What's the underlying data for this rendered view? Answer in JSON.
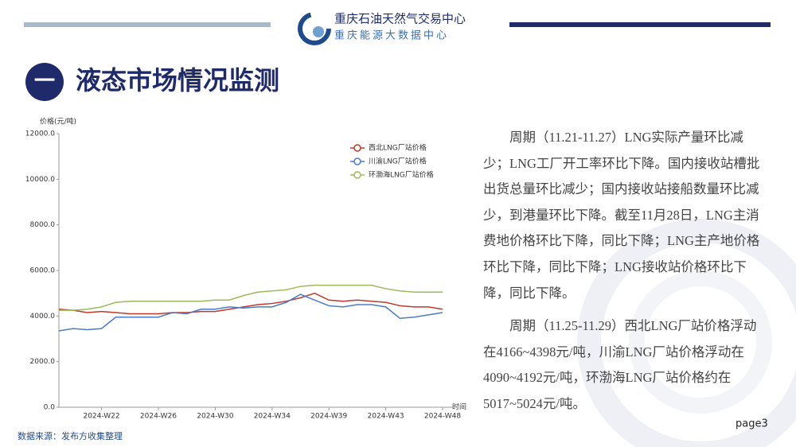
{
  "header": {
    "org": "重庆石油天然气交易中心",
    "org_sub": "重庆能源大数据中心"
  },
  "section": {
    "number": "一",
    "title": "液态市场情况监测"
  },
  "chart_data": {
    "type": "line",
    "y_label": "价格(元/吨)",
    "x_label": "时间",
    "categories": [
      null,
      null,
      null,
      "2024-W22",
      null,
      null,
      null,
      "2024-W26",
      null,
      null,
      null,
      "2024-W30",
      null,
      null,
      null,
      "2024-W34",
      null,
      null,
      null,
      "2024-W39",
      null,
      null,
      null,
      "2024-W43",
      null,
      null,
      null,
      "2024-W48"
    ],
    "series": [
      {
        "name": "西北LNG厂站价格",
        "color": "#c0392b",
        "values": [
          4300,
          4250,
          4150,
          4200,
          4150,
          4100,
          4100,
          4100,
          4150,
          4150,
          4200,
          4200,
          4300,
          4400,
          4500,
          4550,
          4650,
          4800,
          5000,
          4700,
          4650,
          4700,
          4650,
          4600,
          4450,
          4400,
          4400,
          4300
        ]
      },
      {
        "name": "川渝LNG厂站价格",
        "color": "#4a7bc8",
        "values": [
          3350,
          3450,
          3400,
          3450,
          3950,
          3950,
          3950,
          3950,
          4150,
          4100,
          4300,
          4300,
          4400,
          4350,
          4400,
          4400,
          4600,
          4950,
          4700,
          4450,
          4400,
          4500,
          4500,
          4400,
          3900,
          3950,
          4050,
          4150
        ]
      },
      {
        "name": "环渤海LNG厂站价格",
        "color": "#9bbb59",
        "values": [
          4250,
          4250,
          4300,
          4400,
          4600,
          4650,
          4650,
          4650,
          4650,
          4650,
          4650,
          4700,
          4700,
          4900,
          5050,
          5100,
          5150,
          5300,
          5350,
          5350,
          5350,
          5350,
          5350,
          5200,
          5100,
          5050,
          5050,
          5050
        ]
      }
    ],
    "ylim": [
      0,
      12000
    ],
    "yticks": [
      {
        "value": 0,
        "label": "0.0"
      },
      {
        "value": 2000,
        "label": "2000.0"
      },
      {
        "value": 4000,
        "label": "4000.0"
      },
      {
        "value": 6000,
        "label": "6000.0"
      },
      {
        "value": 8000,
        "label": "8000.0"
      },
      {
        "value": 10000,
        "label": "10000.0"
      },
      {
        "value": 12000,
        "label": "12000.0"
      }
    ],
    "legend": "upper right"
  },
  "body": {
    "paragraphs": [
      "周期（11.21-11.27）LNG实际产量环比减少；LNG工厂开工率环比下降。国内接收站槽批出货总量环比减少；国内接收站接船数量环比减少，到港量环比下降。截至11月28日，LNG主消费地价格环比下降，同比下降；LNG主产地价格环比下降，同比下降；LNG接收站价格环比下降，同比下降。",
      "周期（11.25-11.29）西北LNG厂站价格浮动在4166~4398元/吨，川渝LNG厂站价格浮动在4090~4192元/吨，环渤海LNG厂站价格约在5017~5024元/吨。"
    ]
  },
  "footer": {
    "source": "数据来源：发布方收集整理",
    "page": "page3"
  }
}
